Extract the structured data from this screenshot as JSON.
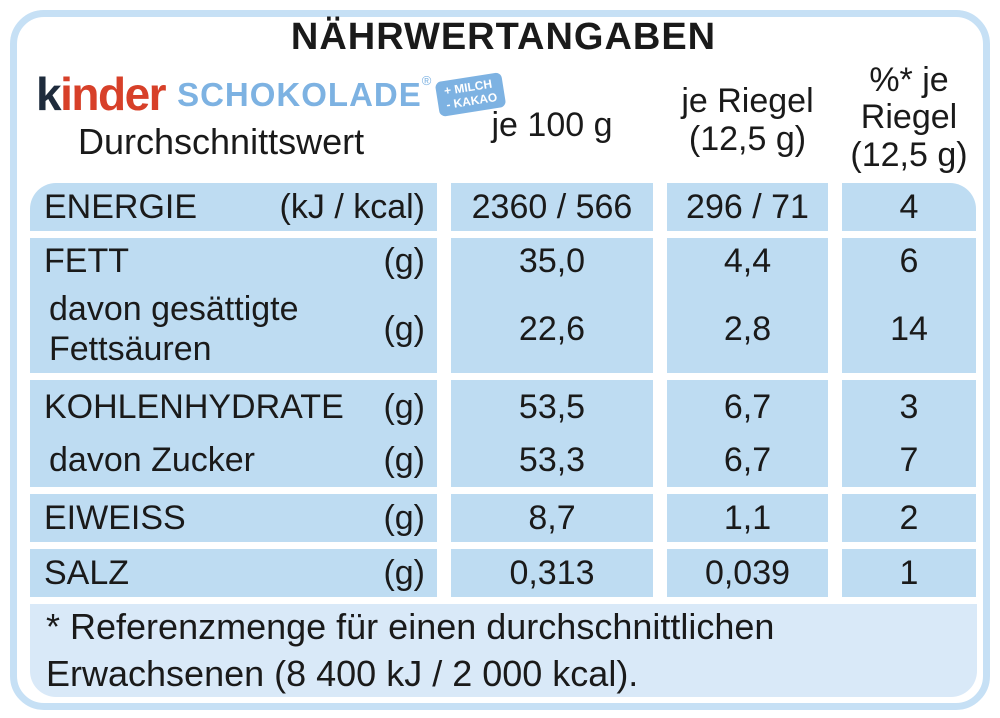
{
  "title": "NÄHRWERTANGABEN",
  "brand": {
    "kinder_k": "k",
    "kinder_rest": "inder",
    "product": "SCHOKOLADE",
    "registered": "®",
    "badge_line1": "+ MILCH",
    "badge_line2": "- KAKAO",
    "subtitle": "Durchschnittswert"
  },
  "columns": {
    "per100": "je 100 g",
    "perRiegel_l1": "je Riegel",
    "perRiegel_l2": "(12,5 g)",
    "percent_l1": "%* je",
    "percent_l2": "Riegel",
    "percent_l3": "(12,5 g)"
  },
  "rows": [
    {
      "label": "ENERGIE",
      "unit": "(kJ / kcal)",
      "per100": "2360 / 566",
      "perRiegel": "296 / 71",
      "percent": "4"
    },
    {
      "label": "FETT",
      "unit": "(g)",
      "per100": "35,0",
      "perRiegel": "4,4",
      "percent": "6"
    },
    {
      "label_l1": "davon gesättigte",
      "label_l2": "Fettsäuren",
      "unit": "(g)",
      "per100": "22,6",
      "perRiegel": "2,8",
      "percent": "14"
    },
    {
      "label": "KOHLENHYDRATE",
      "unit": "(g)",
      "per100": "53,5",
      "perRiegel": "6,7",
      "percent": "3"
    },
    {
      "label": "davon Zucker",
      "unit": "(g)",
      "per100": "53,3",
      "perRiegel": "6,7",
      "percent": "7"
    },
    {
      "label": "EIWEISS",
      "unit": "(g)",
      "per100": "8,7",
      "perRiegel": "1,1",
      "percent": "2"
    },
    {
      "label": "SALZ",
      "unit": "(g)",
      "per100": "0,313",
      "perRiegel": "0,039",
      "percent": "1"
    }
  ],
  "footnote": {
    "line1": "* Referenzmenge für einen durchschnittlichen",
    "line2": "Erwachsenen (8 400 kJ / 2 000 kcal)."
  },
  "colors": {
    "row_bg": "#bedcf2",
    "footnote_bg": "#d9e9f8",
    "frame": "#c6e0f5",
    "kinder_dark": "#1e2b3c",
    "kinder_red": "#d74029",
    "logo_blue": "#7db2e2",
    "text": "#1a1a1a"
  }
}
